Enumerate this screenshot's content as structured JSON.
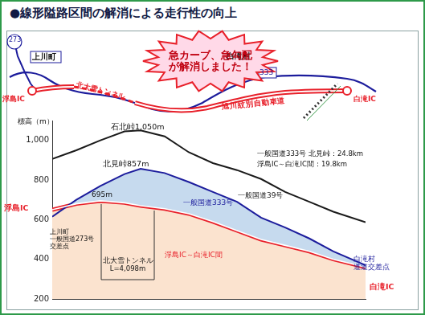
{
  "title": "●線形隘路区間の解消による走行性の向上",
  "map": {
    "callout": "急カーブ、急勾配\nが解消しました！",
    "labels": [
      "273",
      "上川町",
      "北大雪トンネル",
      "333",
      "白滝村",
      "旭川紋別自動車道",
      "浮島IC",
      "白滝IC"
    ]
  },
  "chart_data": {
    "type": "line",
    "y_label": "標高（m）",
    "x": [
      0,
      3,
      6,
      9,
      11,
      14,
      17,
      20,
      23,
      26,
      29,
      32,
      35,
      39
    ],
    "xlim": [
      0,
      39
    ],
    "ylim": [
      200,
      1100
    ],
    "yticks": [
      200,
      400,
      600,
      800,
      {
        "value": 1000,
        "label": "1,000"
      }
    ],
    "grid": false,
    "tick_labels": "y",
    "series": [
      {
        "name": "一般国道39号",
        "color": "#1a1a1a",
        "line_style": "solid",
        "values": [
          906,
          950,
          1000,
          1045,
          1050,
          1020,
          940,
          885,
          850,
          805,
          740,
          690,
          640,
          587
        ]
      },
      {
        "name": "一般国道333号",
        "color": "#1c1c9c",
        "line_style": "solid",
        "values": [
          615,
          700,
          770,
          830,
          857,
          835,
          790,
          740,
          690,
          610,
          560,
          505,
          440,
          370
        ]
      },
      {
        "name": "浮島IC～白滝IC間",
        "color": "#e8202a",
        "line_style": "double",
        "values": [
          650,
          680,
          695,
          685,
          670,
          655,
          630,
          590,
          545,
          500,
          470,
          440,
          400,
          360
        ]
      }
    ],
    "annotations": [
      "石北峠1,050m",
      "北見峠857m",
      "695m",
      "一般国道333号 北見峠：24.8km",
      "浮島IC～白滝IC間：19.8km",
      "浮島IC",
      "上川町\n一般国道273号\n交差点",
      "北大雪トンネル\nL=4,098m",
      "白滝村\n道道交差点",
      "白滝IC"
    ]
  }
}
